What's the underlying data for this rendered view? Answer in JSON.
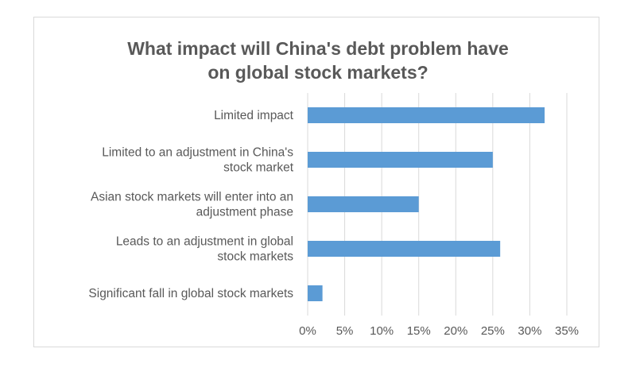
{
  "chart_data": {
    "type": "bar",
    "orientation": "horizontal",
    "title_lines": [
      "What impact will China's debt problem have",
      "on global stock markets?"
    ],
    "categories": [
      [
        "Limited impact"
      ],
      [
        "Limited to an adjustment in China's",
        "stock market"
      ],
      [
        "Asian stock markets will enter into an",
        "adjustment phase"
      ],
      [
        "Leads to an adjustment in global",
        "stock markets"
      ],
      [
        "Significant fall in global stock markets"
      ]
    ],
    "values": [
      32,
      25,
      15,
      26,
      2
    ],
    "xlim": [
      0,
      35
    ],
    "xticks": [
      0,
      5,
      10,
      15,
      20,
      25,
      30,
      35
    ],
    "tick_labels": [
      "0%",
      "5%",
      "10%",
      "15%",
      "20%",
      "25%",
      "30%",
      "35%"
    ],
    "grid": true,
    "bar_color": "#5b9bd5",
    "grid_color": "#d9d9d9",
    "text_color": "#595959"
  }
}
